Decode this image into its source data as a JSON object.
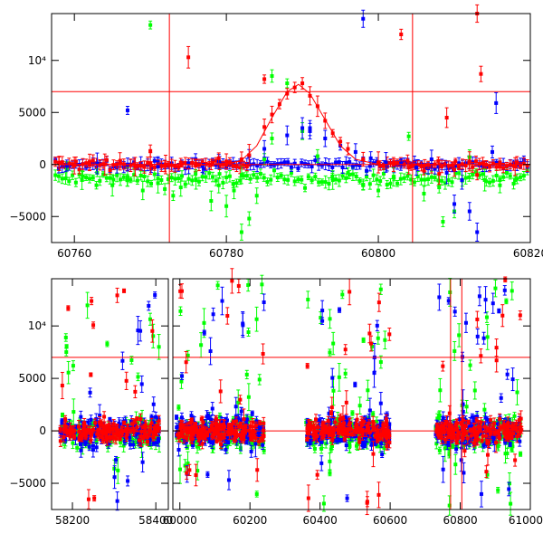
{
  "chart_data": [
    {
      "type": "scatter",
      "title": "",
      "xlabel": "",
      "ylabel": "",
      "xlim": [
        60757,
        60820
      ],
      "ylim": [
        -7500,
        14500
      ],
      "xticks": [
        60760,
        60780,
        60800,
        60820
      ],
      "xtick_labels": [
        "60760",
        "60780",
        "60800",
        "60820"
      ],
      "yticks": [
        -5000,
        0,
        5000,
        10000
      ],
      "ytick_labels": [
        "−5000",
        "0",
        "5000",
        "10⁴"
      ],
      "hlines": [
        0,
        7000
      ],
      "vlines": [
        60772.5,
        60804.5
      ],
      "model_curve": {
        "name": "model",
        "color": "#ff0000",
        "x": [
          60757,
          60780,
          60782,
          60784,
          60786,
          60788,
          60789.5,
          60791,
          60793,
          60795,
          60797,
          60800,
          60820
        ],
        "y": [
          0,
          0,
          400,
          1800,
          4500,
          7000,
          7700,
          6800,
          4300,
          1800,
          500,
          0,
          0
        ]
      },
      "series": [
        {
          "name": "red",
          "color": "#ff0000",
          "x": [
            60758,
            60760,
            60762,
            60764,
            60766,
            60768,
            60770,
            60772,
            60774,
            60776,
            60778,
            60780,
            60782,
            60783,
            60785,
            60786,
            60787,
            60788,
            60789,
            60790,
            60791,
            60792,
            60793,
            60794,
            60795,
            60796,
            60798,
            60800,
            60802,
            60804,
            60806,
            60808,
            60809,
            60810,
            60812,
            60813,
            60814,
            60816,
            60818,
            60775,
            60785,
            60813,
            60813.5,
            60803,
            60770,
            60779
          ],
          "y": [
            100,
            -100,
            200,
            0,
            300,
            -200,
            100,
            0,
            200,
            100,
            0,
            300,
            500,
            900,
            3600,
            4800,
            5800,
            6800,
            7400,
            7800,
            6600,
            5600,
            4200,
            3000,
            2200,
            1500,
            500,
            200,
            0,
            -300,
            -600,
            -900,
            4500,
            -500,
            300,
            -1000,
            0,
            200,
            -200,
            10300,
            8200,
            14500,
            8700,
            12500,
            1300,
            600
          ]
        },
        {
          "name": "blue",
          "color": "#0000ff",
          "x": [
            60759,
            60763,
            60767,
            60771,
            60775,
            60779,
            60783,
            60785,
            60788,
            60790,
            60791,
            60793,
            60795,
            60797,
            60799,
            60801,
            60803,
            60805,
            60807,
            60809,
            60810,
            60811,
            60812,
            60813,
            60815,
            60798,
            60767,
            60791,
            60815.5,
            60777
          ],
          "y": [
            -100,
            100,
            0,
            -200,
            100,
            300,
            800,
            1500,
            2800,
            3500,
            3200,
            2500,
            1800,
            1200,
            600,
            200,
            100,
            -300,
            500,
            -800,
            -3800,
            -1500,
            -4500,
            -6500,
            1200,
            14000,
            5200,
            3500,
            5900,
            -400
          ]
        },
        {
          "name": "green",
          "color": "#00ff00",
          "x": [
            60759,
            60761,
            60763,
            60765,
            60767,
            60769,
            60771,
            60773,
            60774,
            60776,
            60778,
            60779,
            60780,
            60781,
            60782,
            60783,
            60784,
            60785,
            60786,
            60788,
            60790,
            60792,
            60794,
            60796,
            60798,
            60800,
            60802,
            60804,
            60806,
            60808,
            60810,
            60812,
            60814,
            60816,
            60818,
            60770,
            60786,
            60782,
            60808.5
          ],
          "y": [
            -500,
            -1500,
            -800,
            -2000,
            -1200,
            -2500,
            -1800,
            -3000,
            -2200,
            -1500,
            -3500,
            -2000,
            -4000,
            -2500,
            -1000,
            -5200,
            -3000,
            500,
            2500,
            7800,
            3200,
            800,
            -1500,
            -800,
            -2000,
            -2500,
            -1200,
            2700,
            -2800,
            -2200,
            -4500,
            700,
            -1500,
            -2000,
            -1500,
            13400,
            8500,
            -6500,
            -5500
          ]
        }
      ]
    },
    {
      "type": "scatter",
      "title": "",
      "xlabel": "",
      "ylabel": "",
      "xlim": [
        58150,
        61000
      ],
      "ylim": [
        -7500,
        14500
      ],
      "xticks": [
        58200,
        58400,
        60000,
        60200,
        60400,
        60600,
        60800,
        61000
      ],
      "xtick_labels": [
        "58200",
        "58400",
        "60000",
        "60200",
        "60400",
        "60600",
        "60800",
        "61000"
      ],
      "yticks": [
        -5000,
        0,
        5000,
        10000
      ],
      "ytick_labels": [
        "−5000",
        "0",
        "5000",
        "10⁴"
      ],
      "hlines": [
        0,
        7000
      ],
      "vlines": [
        60772.5,
        60804.5
      ],
      "axis_break": {
        "left_panel_xlim": [
          58150,
          58430
        ],
        "right_panel_xlim": [
          59980,
          61000
        ]
      },
      "clusters": [
        {
          "x_start": 58170,
          "x_end": 58410,
          "spread": 1600,
          "outlier_range": [
            -7000,
            13500
          ]
        },
        {
          "x_start": 59990,
          "x_end": 60240,
          "spread": 1800,
          "outlier_range": [
            -7000,
            14500
          ]
        },
        {
          "x_start": 60360,
          "x_end": 60600,
          "spread": 1700,
          "outlier_range": [
            -7000,
            13500
          ]
        },
        {
          "x_start": 60730,
          "x_end": 60975,
          "spread": 1900,
          "outlier_range": [
            -7200,
            14500
          ]
        }
      ],
      "series": [
        {
          "name": "red",
          "color": "#ff0000",
          "role": "foreground"
        },
        {
          "name": "blue",
          "color": "#0000ff",
          "role": "middle"
        },
        {
          "name": "green",
          "color": "#00ff00",
          "role": "background"
        }
      ]
    }
  ]
}
